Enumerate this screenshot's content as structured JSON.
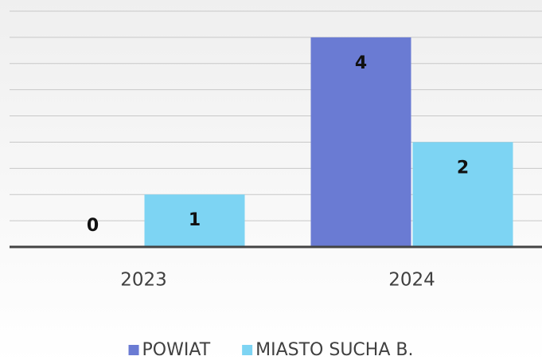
{
  "chart_data": {
    "type": "bar",
    "categories": [
      "2023",
      "2024"
    ],
    "series": [
      {
        "name": "POWIAT",
        "color": "#6a7bd3",
        "values": [
          0,
          4
        ]
      },
      {
        "name": "MIASTO SUCHA B.",
        "color": "#7dd4f3",
        "values": [
          1,
          2
        ]
      }
    ],
    "ylim": [
      0,
      4.5
    ],
    "yticks": [
      0,
      0.5,
      1,
      1.5,
      2,
      2.5,
      3,
      3.5,
      4,
      4.5
    ],
    "grid": true,
    "legend": "bottom"
  }
}
